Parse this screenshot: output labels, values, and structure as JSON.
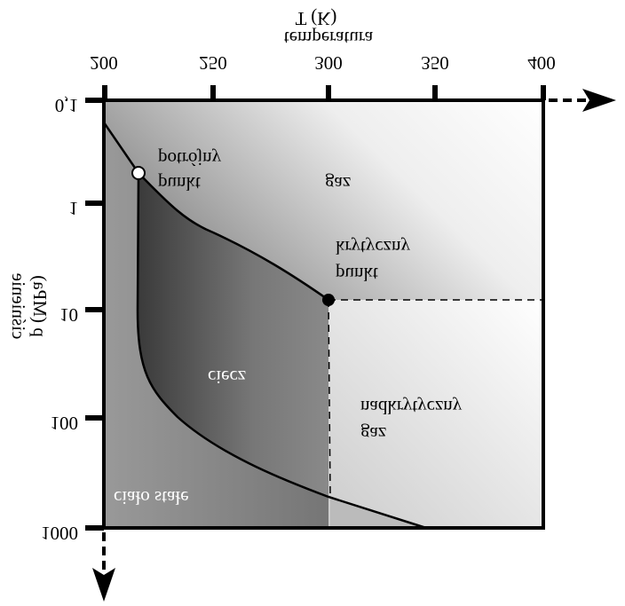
{
  "axes": {
    "x_title": "T (K)",
    "x_subtitle": "temperatura",
    "x_ticks": [
      "200",
      "250",
      "300",
      "350",
      "400"
    ],
    "y_title": "ciśnienie",
    "y_subtitle": "p (MPa)",
    "y_ticks": [
      "0,1",
      "1",
      "10",
      "100",
      "1000"
    ]
  },
  "labels": {
    "triple_point": [
      "punkt",
      "potrójny"
    ],
    "gas": "gaz",
    "critical_point": [
      "punkt",
      "krytyczny"
    ],
    "liquid": "ciecz",
    "supercritical": [
      "gaz",
      "nadkrytyczny"
    ],
    "solid": "ciało stałe"
  }
}
